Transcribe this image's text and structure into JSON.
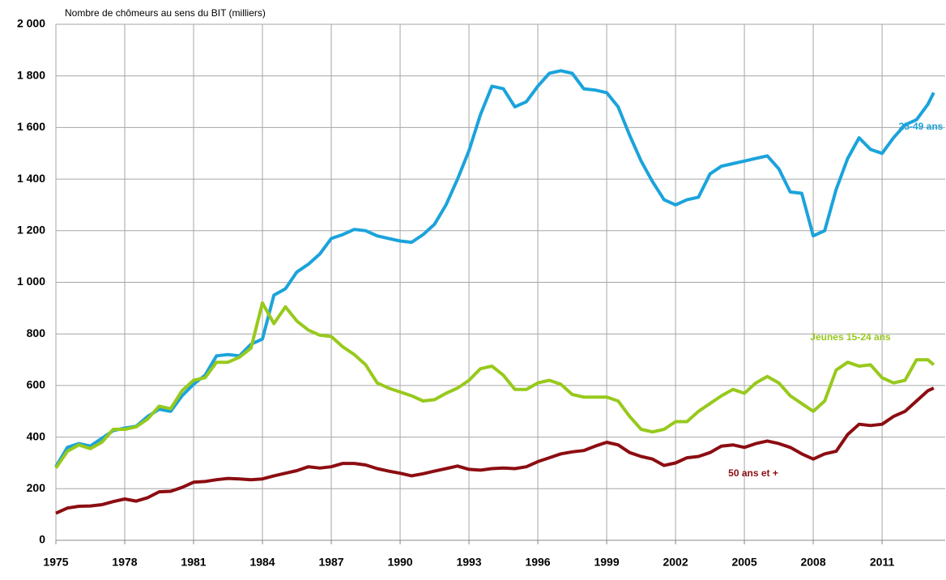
{
  "chart_data": {
    "type": "line",
    "title": "Nombre de chômeurs au sens du BIT (milliers)",
    "x": [
      1975,
      1975.5,
      1976,
      1976.5,
      1977,
      1977.5,
      1978,
      1978.5,
      1979,
      1979.5,
      1980,
      1980.5,
      1981,
      1981.5,
      1982,
      1982.5,
      1983,
      1983.5,
      1984,
      1984.5,
      1985,
      1985.5,
      1986,
      1986.5,
      1987,
      1987.5,
      1988,
      1988.5,
      1989,
      1989.5,
      1990,
      1990.5,
      1991,
      1991.5,
      1992,
      1992.5,
      1993,
      1993.5,
      1994,
      1994.5,
      1995,
      1995.5,
      1996,
      1996.5,
      1997,
      1997.5,
      1998,
      1998.5,
      1999,
      1999.5,
      2000,
      2000.5,
      2001,
      2001.5,
      2002,
      2002.5,
      2003,
      2003.5,
      2004,
      2004.5,
      2005,
      2005.5,
      2006,
      2006.5,
      2007,
      2007.5,
      2008,
      2008.5,
      2009,
      2009.5,
      2010,
      2010.5,
      2011,
      2011.5,
      2012,
      2012.5,
      2013,
      2013.25
    ],
    "series": [
      {
        "name": "25-49 ans",
        "color": "#1ba3db",
        "values": [
          285,
          360,
          375,
          365,
          395,
          425,
          435,
          442,
          480,
          508,
          500,
          560,
          605,
          640,
          715,
          720,
          715,
          760,
          780,
          950,
          975,
          1040,
          1070,
          1110,
          1170,
          1185,
          1205,
          1200,
          1180,
          1170,
          1160,
          1155,
          1185,
          1225,
          1300,
          1400,
          1510,
          1650,
          1760,
          1750,
          1680,
          1700,
          1760,
          1810,
          1820,
          1810,
          1750,
          1745,
          1735,
          1680,
          1570,
          1470,
          1390,
          1320,
          1300,
          1320,
          1330,
          1420,
          1450,
          1460,
          1470,
          1480,
          1490,
          1440,
          1350,
          1345,
          1180,
          1200,
          1360,
          1480,
          1560,
          1515,
          1500,
          1560,
          1610,
          1630,
          1690,
          1735
        ]
      },
      {
        "name": "Jeunes 15-24 ans",
        "color": "#97c91c",
        "values": [
          280,
          345,
          370,
          355,
          380,
          430,
          430,
          440,
          470,
          520,
          510,
          580,
          620,
          630,
          690,
          690,
          710,
          745,
          920,
          840,
          905,
          850,
          815,
          795,
          790,
          750,
          720,
          680,
          610,
          590,
          575,
          560,
          540,
          545,
          570,
          590,
          620,
          665,
          675,
          640,
          585,
          585,
          610,
          620,
          605,
          565,
          555,
          555,
          555,
          540,
          480,
          430,
          420,
          430,
          460,
          460,
          500,
          530,
          560,
          585,
          570,
          610,
          635,
          610,
          560,
          530,
          500,
          540,
          660,
          690,
          675,
          680,
          630,
          610,
          620,
          700,
          700,
          680
        ]
      },
      {
        "name": "50 ans et +",
        "color": "#8c0d12",
        "values": [
          105,
          125,
          132,
          133,
          138,
          150,
          160,
          152,
          165,
          188,
          190,
          205,
          225,
          228,
          235,
          240,
          238,
          235,
          238,
          250,
          260,
          270,
          285,
          280,
          285,
          298,
          298,
          292,
          278,
          268,
          260,
          250,
          258,
          268,
          278,
          288,
          275,
          272,
          278,
          280,
          278,
          285,
          305,
          320,
          335,
          343,
          348,
          365,
          380,
          370,
          340,
          325,
          315,
          290,
          300,
          320,
          325,
          340,
          365,
          370,
          360,
          375,
          385,
          375,
          360,
          335,
          315,
          335,
          345,
          410,
          450,
          445,
          450,
          480,
          500,
          540,
          580,
          590
        ]
      }
    ],
    "xlim": [
      1975,
      2013.75
    ],
    "xticks": [
      1975,
      1978,
      1981,
      1984,
      1987,
      1990,
      1993,
      1996,
      1999,
      2002,
      2005,
      2008,
      2011
    ],
    "ylim": [
      0,
      2000
    ],
    "yticks": [
      0,
      200,
      400,
      600,
      800,
      {
        "value": 1000,
        "label": "1 000"
      },
      {
        "value": 1200,
        "label": "1 200"
      },
      {
        "value": 1400,
        "label": "1 400"
      },
      {
        "value": 1600,
        "label": "1 600"
      },
      {
        "value": 1800,
        "label": "1 800"
      },
      {
        "value": 2000,
        "label": "2 000"
      }
    ],
    "grid": true
  }
}
